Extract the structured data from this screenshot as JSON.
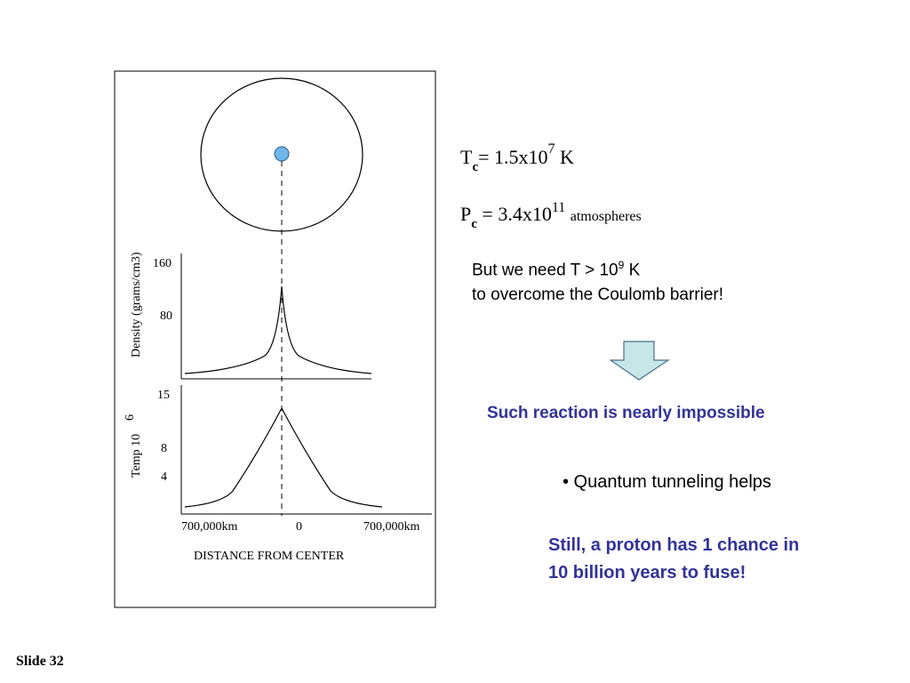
{
  "figure": {
    "density_axis_label": "Density (grams/cm3)",
    "density_ticks": [
      "160",
      "80"
    ],
    "temp_axis_label": "Temp  10",
    "temp_axis_exp": "6",
    "temp_ticks": [
      "15",
      "8",
      "4"
    ],
    "x_ticks": [
      "700,000km",
      "0",
      "700,000km"
    ],
    "x_label": "DISTANCE FROM CENTER",
    "core_color": "#6fb7ea"
  },
  "equations": {
    "tc_symbol": "T",
    "tc_sub": "c",
    "tc_value": "= 1.5x10",
    "tc_exp": "7",
    "tc_unit": "K",
    "pc_symbol": "P",
    "pc_sub": "c",
    "pc_value": "= 3.4x10",
    "pc_exp": "11",
    "pc_unit": "atmospheres"
  },
  "text": {
    "need_line1_pre": "But we need T > 10",
    "need_line1_exp": "9",
    "need_line1_post": " K",
    "need_line2": "to overcome the Coulomb barrier!",
    "impossible": "Such reaction is nearly impossible",
    "tunneling": "• Quantum tunneling helps",
    "still_line1": "Still, a proton has 1 chance in",
    "still_line2": "10 billion years to fuse!",
    "slide_label": "Slide 32"
  },
  "colors": {
    "accent_text": "#333399",
    "arrow_fill": "#c6e6e8"
  }
}
